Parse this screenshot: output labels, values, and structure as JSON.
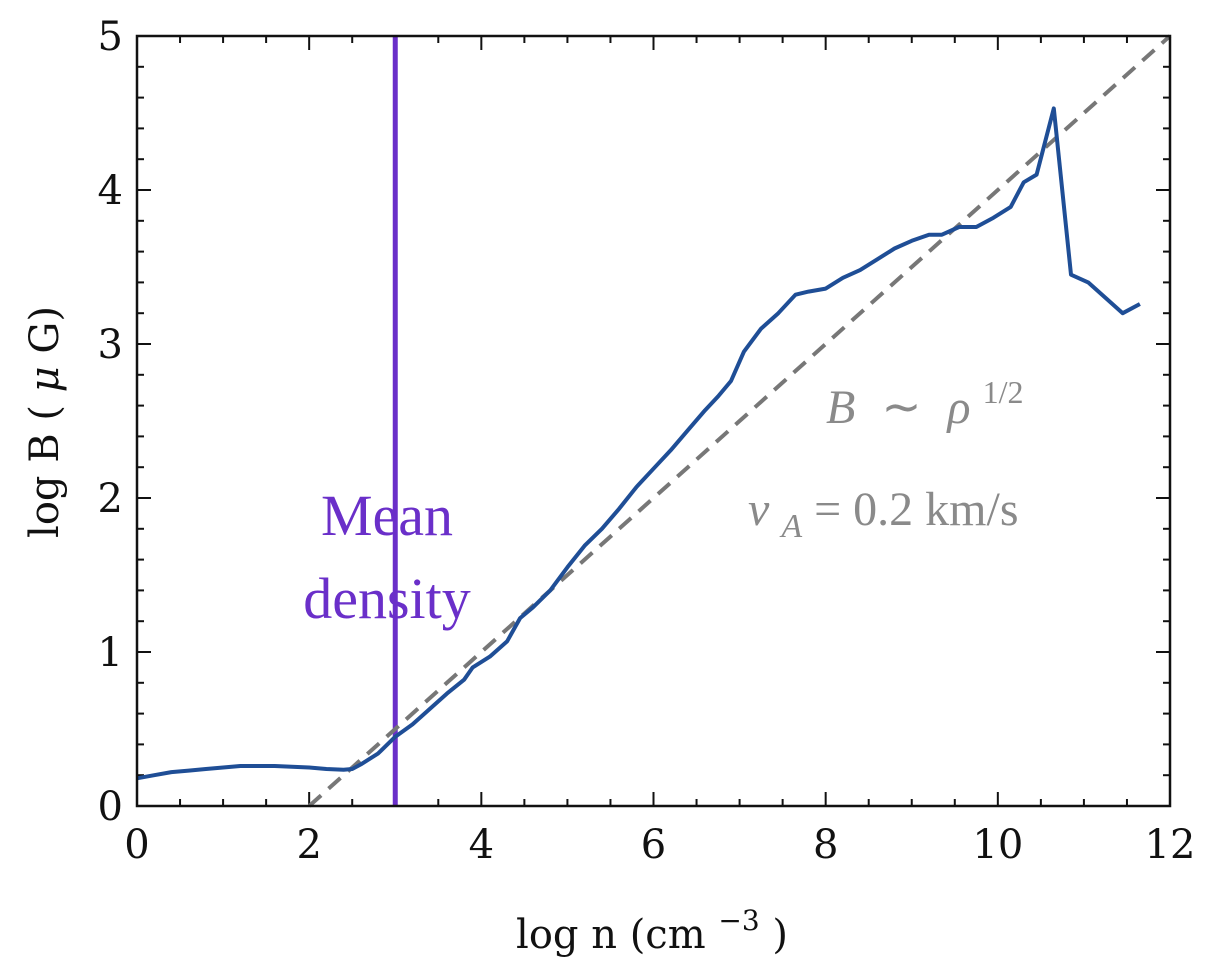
{
  "chart_data": {
    "type": "line",
    "xlabel_main": "log n (cm",
    "xlabel_sup": "−3",
    "xlabel_tail": ")",
    "ylabel_main": "log B (",
    "ylabel_mu": "μ",
    "ylabel_tail": "G)",
    "xlim": [
      0,
      12
    ],
    "ylim": [
      0,
      5
    ],
    "xticks": [
      "0",
      "2",
      "4",
      "6",
      "8",
      "10",
      "12"
    ],
    "yticks": [
      "0",
      "1",
      "2",
      "3",
      "4",
      "5"
    ],
    "grid": false,
    "series": [
      {
        "color": "#1f4e96",
        "style": "solid",
        "x": [
          0.0,
          0.2,
          0.4,
          0.6,
          0.8,
          1.0,
          1.2,
          1.4,
          1.6,
          1.8,
          2.0,
          2.2,
          2.4,
          2.5,
          2.6,
          2.8,
          3.0,
          3.2,
          3.4,
          3.6,
          3.8,
          3.9,
          4.1,
          4.3,
          4.45,
          4.6,
          4.8,
          5.0,
          5.2,
          5.4,
          5.6,
          5.8,
          6.0,
          6.2,
          6.4,
          6.6,
          6.75,
          6.9,
          7.05,
          7.25,
          7.45,
          7.65,
          7.8,
          8.0,
          8.2,
          8.4,
          8.6,
          8.8,
          9.0,
          9.2,
          9.35,
          9.55,
          9.75,
          9.95,
          10.15,
          10.3,
          10.45,
          10.65,
          10.85,
          11.05,
          11.25,
          11.45,
          11.65
        ],
        "y": [
          0.18,
          0.2,
          0.22,
          0.23,
          0.24,
          0.25,
          0.26,
          0.26,
          0.26,
          0.255,
          0.25,
          0.24,
          0.235,
          0.24,
          0.27,
          0.34,
          0.45,
          0.53,
          0.63,
          0.73,
          0.82,
          0.9,
          0.97,
          1.07,
          1.22,
          1.29,
          1.4,
          1.55,
          1.69,
          1.8,
          1.93,
          2.07,
          2.19,
          2.31,
          2.44,
          2.57,
          2.66,
          2.76,
          2.95,
          3.1,
          3.2,
          3.32,
          3.34,
          3.36,
          3.43,
          3.48,
          3.55,
          3.62,
          3.67,
          3.71,
          3.71,
          3.76,
          3.76,
          3.82,
          3.89,
          4.05,
          4.1,
          4.53,
          3.45,
          3.4,
          3.3,
          3.2,
          3.26
        ]
      },
      {
        "color": "#777777",
        "style": "dashed",
        "x": [
          2.0,
          12.0
        ],
        "y": [
          0.0,
          5.0
        ]
      }
    ],
    "vline": {
      "x": 3.0,
      "color": "#6a2fc9"
    },
    "annotations": {
      "mean_line1": "Mean",
      "mean_line2": "density",
      "scaling_B": "B",
      "scaling_sim": "∼",
      "scaling_rho": "ρ",
      "scaling_exp": "1/2",
      "va_symbol": "v",
      "va_sub": "A",
      "va_rest": " = 0.2 km/s"
    }
  }
}
